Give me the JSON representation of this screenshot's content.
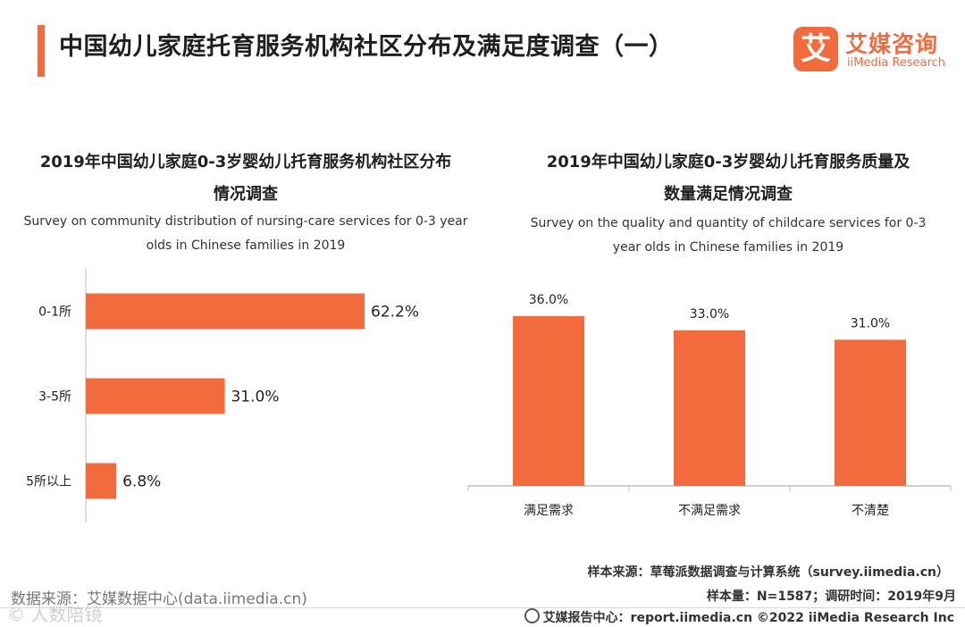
{
  "header": {
    "title": "中国幼儿家庭托育服务机构社区分布及满足度调查（一）",
    "logo_mark": "艾",
    "logo_cn": "艾媒咨询",
    "logo_en": "iiMedia Research"
  },
  "colors": {
    "accent": "#f26b3d",
    "bar": "#f26b3d",
    "axis": "#bfbfbf"
  },
  "chart_data": [
    {
      "type": "bar",
      "orientation": "horizontal",
      "title_line1": "2019年中国幼儿家庭0-3岁婴幼儿托育服务机构社区分布",
      "title_line2": "情况调查",
      "subtitle_line1": "Survey on community distribution of nursing-care services for 0-3 year",
      "subtitle_line2": "olds in Chinese families in 2019",
      "categories": [
        "0-1所",
        "3-5所",
        "5所以上"
      ],
      "values": [
        62.2,
        31.0,
        6.8
      ],
      "value_labels": [
        "62.2%",
        "31.0%",
        "6.8%"
      ],
      "xlim": [
        0,
        65
      ]
    },
    {
      "type": "bar",
      "orientation": "vertical",
      "title_line1": "2019年中国幼儿家庭0-3岁婴幼儿托育服务质量及",
      "title_line2": "数量满足情况调查",
      "subtitle_line1": "Survey on the quality and quantity of childcare services for 0-3",
      "subtitle_line2": "year olds in Chinese families in 2019",
      "categories": [
        "满足需求",
        "不满足需求",
        "不清楚"
      ],
      "values": [
        36.0,
        33.0,
        31.0
      ],
      "value_labels": [
        "36.0%",
        "33.0%",
        "31.0%"
      ],
      "ylim": [
        0,
        40
      ]
    }
  ],
  "footer": {
    "sample_source": "样本来源：草莓派数据调查与计算系统（survey.iimedia.cn）",
    "sample_info": "样本量：N=1587；调研时间：2019年9月",
    "data_source": "数据来源：艾媒数据中心(data.iimedia.cn)",
    "report_center": "艾媒报告中心：report.iimedia.cn  ©2022  iiMedia Research  Inc",
    "watermark": "©  人数陪镜"
  }
}
